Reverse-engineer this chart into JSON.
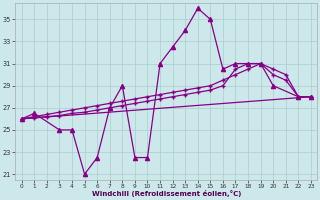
{
  "xlabel": "Windchill (Refroidissement éolien,°C)",
  "background_color": "#cce8ea",
  "line_color": "#880088",
  "grid_color": "#aacccc",
  "xlim": [
    -0.5,
    23.5
  ],
  "ylim": [
    20.5,
    36.5
  ],
  "xticks": [
    0,
    1,
    2,
    3,
    4,
    5,
    6,
    7,
    8,
    9,
    10,
    11,
    12,
    13,
    14,
    15,
    16,
    17,
    18,
    19,
    20,
    21,
    22,
    23
  ],
  "yticks": [
    21,
    23,
    25,
    27,
    29,
    31,
    33,
    35
  ],
  "line1_x": [
    0,
    1,
    2,
    3,
    4,
    5,
    6,
    7,
    8,
    9,
    10,
    11,
    12,
    13,
    14,
    15,
    16,
    17,
    18,
    19,
    20,
    21,
    22,
    23
  ],
  "line1_y": [
    26.0,
    26.2,
    26.4,
    26.6,
    26.8,
    27.0,
    27.2,
    27.4,
    27.6,
    27.8,
    28.0,
    28.2,
    28.4,
    28.6,
    28.8,
    29.0,
    29.5,
    30.0,
    30.5,
    31.0,
    30.5,
    30.0,
    28.0,
    28.0
  ],
  "line2_x": [
    0,
    1,
    2,
    3,
    4,
    5,
    6,
    7,
    8,
    9,
    10,
    11,
    12,
    13,
    14,
    15,
    16,
    17,
    18,
    19,
    20,
    21,
    22,
    23
  ],
  "line2_y": [
    26.0,
    26.1,
    26.2,
    26.3,
    26.5,
    26.6,
    26.8,
    27.0,
    27.2,
    27.4,
    27.6,
    27.8,
    28.0,
    28.2,
    28.4,
    28.6,
    29.0,
    30.5,
    31.0,
    31.0,
    30.0,
    29.5,
    28.0,
    28.0
  ],
  "line3_x": [
    0,
    23
  ],
  "line3_y": [
    26.0,
    28.0
  ],
  "line4_x": [
    0,
    1,
    3,
    4,
    5,
    6,
    7,
    8,
    9,
    10,
    11,
    12,
    13,
    14,
    15,
    16,
    17,
    18,
    19,
    20,
    22,
    23
  ],
  "line4_y": [
    26.0,
    26.5,
    25.0,
    25.0,
    21.0,
    22.5,
    27.0,
    29.0,
    22.5,
    22.5,
    31.0,
    32.5,
    34.0,
    36.0,
    35.0,
    30.5,
    31.0,
    31.0,
    31.0,
    29.0,
    28.0,
    28.0
  ]
}
